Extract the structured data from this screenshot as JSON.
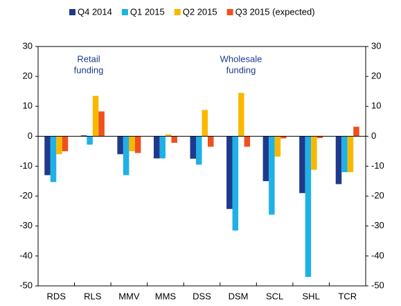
{
  "chart_data": {
    "type": "bar",
    "categories": [
      "RDS",
      "RLS",
      "MMV",
      "MMS",
      "DSS",
      "DSM",
      "SCL",
      "SHL",
      "TCR"
    ],
    "series": [
      {
        "name": "Q4 2014",
        "color": "#1f3a8c",
        "values": [
          -13,
          0.3,
          -6,
          -7.4,
          -7.5,
          -24.3,
          -15,
          -19,
          -16
        ]
      },
      {
        "name": "Q1 2015",
        "color": "#1fb1e6",
        "values": [
          -15.3,
          -2.8,
          -13,
          -7.4,
          -9.5,
          -31.5,
          -26.2,
          -47,
          -12
        ]
      },
      {
        "name": "Q2 2015",
        "color": "#f9b800",
        "values": [
          -6,
          13.5,
          -5,
          0.6,
          8.8,
          14.5,
          -6.8,
          -11.2,
          -12
        ]
      },
      {
        "name": "Q3 2015 (expected)",
        "color": "#f0501e",
        "values": [
          -5,
          8.3,
          -5.6,
          -2.2,
          -3.5,
          -3.5,
          -0.7,
          -0.6,
          3.2
        ]
      }
    ],
    "ylim": [
      -50,
      30
    ],
    "yticks": [
      -50,
      -40,
      -30,
      -20,
      -10,
      0,
      10,
      20,
      30
    ],
    "y2lim": [
      -50,
      30
    ],
    "y2ticks": [
      -50,
      -40,
      -30,
      -20,
      -10,
      0,
      10,
      20,
      30
    ],
    "annotations": [
      [
        "Retail",
        "funding"
      ],
      [
        "Wholesale",
        "funding"
      ]
    ],
    "annotation_color": "#1f3a8c"
  }
}
